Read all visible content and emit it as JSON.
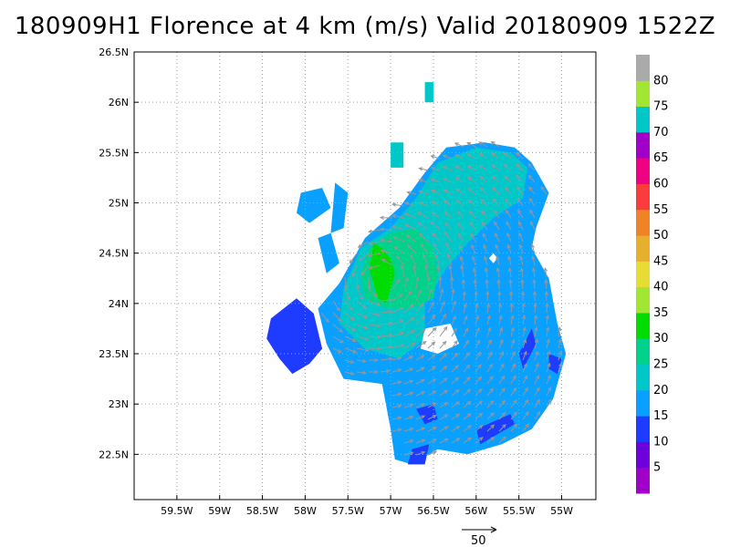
{
  "title": "180909H1 Florence at 4 km (m/s) Valid 20180909  1522Z",
  "map": {
    "lon_range": [
      -60.0,
      -54.6
    ],
    "lat_range": [
      22.05,
      26.5
    ],
    "x_ticks": [
      {
        "value": -59.5,
        "label": "59.5W"
      },
      {
        "value": -59.0,
        "label": "59W"
      },
      {
        "value": -58.5,
        "label": "58.5W"
      },
      {
        "value": -58.0,
        "label": "58W"
      },
      {
        "value": -57.5,
        "label": "57.5W"
      },
      {
        "value": -57.0,
        "label": "57W"
      },
      {
        "value": -56.5,
        "label": "56.5W"
      },
      {
        "value": -56.0,
        "label": "56W"
      },
      {
        "value": -55.5,
        "label": "55.5W"
      },
      {
        "value": -55.0,
        "label": "55W"
      }
    ],
    "y_ticks": [
      {
        "value": 26.5,
        "label": "26.5N"
      },
      {
        "value": 26.0,
        "label": "26N"
      },
      {
        "value": 25.5,
        "label": "25.5N"
      },
      {
        "value": 25.0,
        "label": "25N"
      },
      {
        "value": 24.5,
        "label": "24.5N"
      },
      {
        "value": 24.0,
        "label": "24N"
      },
      {
        "value": 23.5,
        "label": "23.5N"
      },
      {
        "value": 23.0,
        "label": "23N"
      },
      {
        "value": 22.5,
        "label": "22.5N"
      }
    ],
    "storm_center": {
      "lon": -57.1,
      "lat": 24.25
    },
    "grid": true
  },
  "colorbar": {
    "bins": [
      {
        "color": "#a000c8",
        "label": "5"
      },
      {
        "color": "#6e00dc",
        "label": "10"
      },
      {
        "color": "#1e3cff",
        "label": "15"
      },
      {
        "color": "#0aa0ff",
        "label": "20"
      },
      {
        "color": "#00c8c8",
        "label": "25"
      },
      {
        "color": "#00d28c",
        "label": "30"
      },
      {
        "color": "#00dc00",
        "label": "35"
      },
      {
        "color": "#a0e632",
        "label": "40"
      },
      {
        "color": "#e6dc32",
        "label": "45"
      },
      {
        "color": "#e6af2d",
        "label": "50"
      },
      {
        "color": "#f08228",
        "label": "55"
      },
      {
        "color": "#fa3c3c",
        "label": "60"
      },
      {
        "color": "#f00082",
        "label": "65"
      },
      {
        "color": "#a000c8",
        "label": "70"
      },
      {
        "color": "#00c8c8",
        "label": "75"
      },
      {
        "color": "#a0e632",
        "label": "80"
      },
      {
        "color": "#aaaaaa",
        "label": ""
      }
    ]
  },
  "reference_vector": {
    "value": 50,
    "label": "50"
  },
  "colors": {
    "arrow": "#969696",
    "grid": "#a0a0a0",
    "frame": "#000000"
  }
}
